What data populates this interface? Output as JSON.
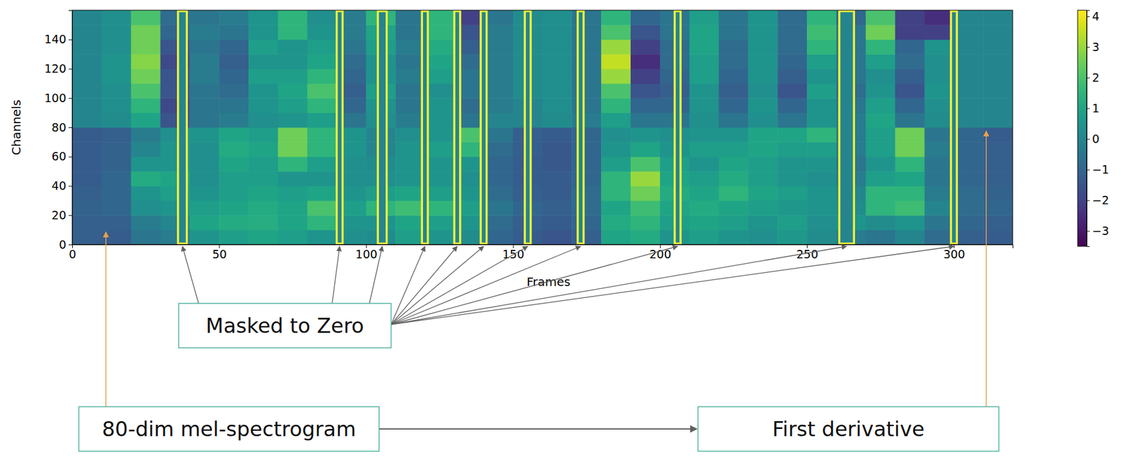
{
  "chart_data": {
    "type": "heatmap",
    "xlabel": "Frames",
    "ylabel": "Channels",
    "xlim": [
      0,
      320
    ],
    "ylim": [
      0,
      160
    ],
    "xticks": [
      0,
      50,
      100,
      150,
      200,
      250,
      300
    ],
    "yticks": [
      0,
      20,
      40,
      60,
      80,
      100,
      120,
      140
    ],
    "x_bins": [
      0,
      10,
      20,
      30,
      40,
      50,
      60,
      70,
      80,
      90,
      100,
      110,
      120,
      130,
      140,
      150,
      160,
      170,
      180,
      190,
      200,
      210,
      220,
      230,
      240,
      250,
      260,
      270,
      280,
      290,
      300,
      310,
      320
    ],
    "y_bins": [
      0,
      10,
      20,
      30,
      40,
      50,
      60,
      70,
      80,
      90,
      100,
      110,
      120,
      130,
      140,
      150,
      160
    ],
    "z": [
      [
        -1.2,
        -1.3,
        -0.5,
        -0.3,
        0.5,
        0.8,
        1.0,
        0.8,
        0.5,
        0.3,
        0.2,
        0.8,
        0.5,
        0.2,
        -1.0,
        -1.3,
        -1.5,
        -1.2,
        1.0,
        1.2,
        0.5,
        0.8,
        0.5,
        0.3,
        0.6,
        0.2,
        -0.3,
        -0.5,
        0.0,
        -0.8,
        -1.2,
        -1.3
      ],
      [
        -1.2,
        -1.2,
        -0.3,
        0.0,
        1.0,
        1.2,
        1.3,
        1.0,
        1.5,
        0.5,
        0.5,
        1.0,
        0.8,
        0.5,
        -0.8,
        -1.2,
        -1.3,
        -1.0,
        1.2,
        1.5,
        0.8,
        1.0,
        0.8,
        0.5,
        0.8,
        0.3,
        0.5,
        0.2,
        0.5,
        -0.5,
        -1.0,
        -1.2
      ],
      [
        -1.1,
        -1.0,
        0.3,
        0.5,
        0.8,
        1.0,
        1.2,
        1.0,
        2.0,
        0.8,
        1.5,
        1.8,
        1.5,
        0.8,
        -0.5,
        -1.0,
        -1.2,
        -0.8,
        1.0,
        1.8,
        1.0,
        1.2,
        1.0,
        0.8,
        0.6,
        0.5,
        0.2,
        1.5,
        1.8,
        0.0,
        -0.8,
        -1.0
      ],
      [
        -1.2,
        -1.0,
        0.5,
        0.8,
        0.5,
        0.8,
        1.0,
        0.8,
        1.0,
        0.5,
        0.8,
        1.0,
        0.8,
        0.5,
        -0.8,
        -1.2,
        -1.3,
        -0.8,
        1.5,
        2.5,
        1.2,
        1.0,
        1.5,
        1.0,
        0.8,
        0.5,
        0.0,
        1.5,
        1.5,
        -0.3,
        -0.8,
        -1.1
      ],
      [
        -1.3,
        -1.0,
        1.2,
        1.0,
        0.3,
        0.8,
        0.8,
        0.5,
        0.5,
        0.3,
        0.3,
        0.5,
        0.5,
        0.3,
        -1.0,
        -1.3,
        -1.3,
        -1.0,
        1.5,
        3.0,
        1.0,
        0.8,
        1.2,
        0.8,
        0.5,
        0.3,
        -0.3,
        0.8,
        1.0,
        -0.5,
        -1.0,
        -1.2
      ],
      [
        -1.3,
        -1.1,
        0.5,
        0.5,
        0.3,
        1.0,
        0.8,
        1.5,
        0.8,
        0.3,
        0.2,
        0.5,
        0.5,
        0.5,
        -1.0,
        -1.3,
        -1.4,
        -1.0,
        0.8,
        2.0,
        0.8,
        0.5,
        1.0,
        0.8,
        0.5,
        0.5,
        -0.5,
        0.5,
        1.5,
        -0.5,
        -1.0,
        -1.2
      ],
      [
        -1.3,
        -1.1,
        0.0,
        0.5,
        0.3,
        1.2,
        1.0,
        2.5,
        1.5,
        0.5,
        0.0,
        0.5,
        0.8,
        1.5,
        -0.8,
        -1.2,
        -1.4,
        -1.0,
        0.5,
        1.0,
        0.5,
        0.8,
        0.8,
        1.0,
        0.8,
        0.8,
        -0.3,
        0.8,
        2.5,
        -0.3,
        -1.0,
        -1.2
      ],
      [
        -1.3,
        -1.2,
        -0.3,
        0.3,
        0.5,
        1.0,
        0.8,
        2.5,
        1.5,
        0.5,
        0.0,
        0.3,
        0.5,
        2.0,
        -0.5,
        -1.2,
        -1.3,
        -1.0,
        0.3,
        0.5,
        0.3,
        0.5,
        0.5,
        1.0,
        1.0,
        1.5,
        -0.3,
        0.8,
        2.5,
        -0.5,
        -1.0,
        -1.3
      ],
      [
        0.0,
        0.2,
        1.0,
        -1.5,
        -0.5,
        -0.3,
        0.3,
        0.5,
        0.8,
        -0.5,
        0.3,
        -0.3,
        0.5,
        -0.5,
        0.0,
        0.0,
        0.2,
        -0.3,
        0.8,
        -0.5,
        -0.5,
        0.3,
        -0.5,
        0.3,
        -0.5,
        0.5,
        -0.3,
        1.0,
        -0.5,
        0.2,
        0.0,
        0.0
      ],
      [
        0.0,
        0.3,
        1.5,
        -1.8,
        -0.5,
        -0.5,
        0.5,
        0.8,
        1.5,
        -1.0,
        0.5,
        -0.5,
        0.5,
        -0.8,
        -0.3,
        0.0,
        0.3,
        -0.5,
        1.5,
        -1.0,
        -1.0,
        0.5,
        -1.0,
        0.5,
        -1.0,
        0.5,
        -0.5,
        0.8,
        -1.0,
        0.3,
        0.0,
        0.0
      ],
      [
        0.0,
        0.3,
        2.0,
        -1.5,
        -0.5,
        -0.8,
        0.5,
        1.0,
        2.0,
        -1.2,
        0.8,
        -0.5,
        0.3,
        -0.5,
        -0.3,
        0.2,
        0.3,
        -0.5,
        2.0,
        -1.5,
        -1.2,
        0.5,
        -1.2,
        0.3,
        -1.5,
        0.8,
        -0.8,
        0.5,
        -1.5,
        0.5,
        0.0,
        0.0
      ],
      [
        0.0,
        0.5,
        2.5,
        -1.5,
        -0.3,
        -1.0,
        0.8,
        0.8,
        1.5,
        -1.0,
        0.5,
        -0.3,
        0.8,
        -0.5,
        -0.3,
        0.2,
        0.3,
        -0.5,
        3.0,
        -2.0,
        -1.0,
        0.8,
        -1.0,
        0.5,
        -1.2,
        0.5,
        -0.5,
        0.3,
        -1.2,
        0.3,
        0.0,
        0.0
      ],
      [
        0.0,
        0.5,
        2.8,
        -1.8,
        -0.3,
        -1.2,
        0.5,
        0.5,
        1.0,
        -0.8,
        0.5,
        -0.5,
        1.0,
        -0.8,
        -0.3,
        0.2,
        0.3,
        -0.5,
        3.5,
        -2.5,
        -0.8,
        0.8,
        -0.8,
        0.5,
        -1.0,
        0.8,
        -0.5,
        0.8,
        -0.8,
        0.3,
        0.0,
        0.0
      ],
      [
        0.0,
        0.3,
        2.5,
        -1.5,
        -0.5,
        -1.0,
        0.8,
        0.5,
        0.8,
        -0.5,
        0.8,
        -0.3,
        1.2,
        -1.2,
        -0.3,
        0.2,
        0.3,
        -0.5,
        3.0,
        -2.0,
        -0.8,
        1.0,
        -0.8,
        0.5,
        -0.8,
        1.5,
        -0.5,
        1.5,
        -1.0,
        0.5,
        0.0,
        0.0
      ],
      [
        0.0,
        0.3,
        2.5,
        -1.0,
        -0.3,
        -0.5,
        0.5,
        1.5,
        0.5,
        -0.3,
        1.0,
        -0.5,
        1.5,
        -1.5,
        -0.3,
        0.2,
        0.3,
        -0.5,
        2.0,
        -1.5,
        -0.5,
        1.0,
        -0.5,
        0.5,
        -0.8,
        1.8,
        -0.5,
        2.5,
        -2.0,
        -2.0,
        0.0,
        0.0
      ],
      [
        0.0,
        0.3,
        2.0,
        -0.8,
        -0.5,
        -0.3,
        0.5,
        1.5,
        0.3,
        -0.3,
        1.5,
        -0.5,
        1.5,
        -2.0,
        -0.5,
        0.2,
        0.3,
        -0.5,
        1.5,
        -1.0,
        -0.5,
        0.8,
        -0.5,
        0.5,
        -0.8,
        1.5,
        -1.0,
        2.0,
        -2.0,
        -2.5,
        0.0,
        0.0
      ]
    ],
    "masks": [
      [
        36,
        39
      ],
      [
        90,
        92
      ],
      [
        104,
        107
      ],
      [
        119,
        121
      ],
      [
        130,
        132
      ],
      [
        139,
        141
      ],
      [
        154,
        156
      ],
      [
        172,
        174
      ],
      [
        205,
        207
      ],
      [
        261,
        266
      ],
      [
        299,
        301
      ]
    ],
    "mask_value": 0,
    "colorbar": {
      "range": [
        -3.5,
        4.2
      ],
      "ticks": [
        {
          "value": -3,
          "label": "−3"
        },
        {
          "value": -2,
          "label": "−2"
        },
        {
          "value": -1,
          "label": "−1"
        },
        0,
        1,
        2,
        3,
        4
      ]
    },
    "annotations": {
      "masked": "Masked to Zero",
      "mel": "80-dim mel-spectrogram",
      "derivative": "First derivative"
    }
  }
}
